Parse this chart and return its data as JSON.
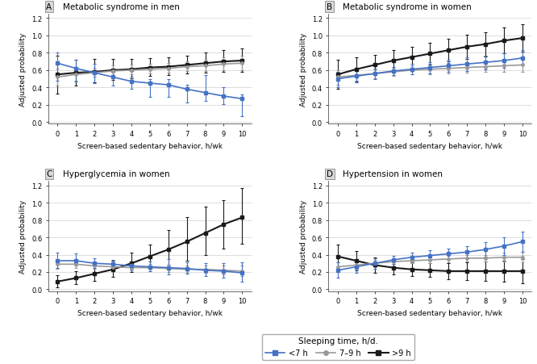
{
  "x": [
    0,
    1,
    2,
    3,
    4,
    5,
    6,
    7,
    8,
    9,
    10
  ],
  "panels": {
    "A": {
      "title": "Metabolic syndrome in men",
      "ylabel": "Adjusted probability",
      "xlabel": "Screen-based sedentary behavior, h/wk",
      "ylim": [
        -0.02,
        1.25
      ],
      "yticks": [
        0,
        0.2,
        0.4,
        0.6,
        0.8,
        1.0,
        1.2
      ],
      "series": {
        "lt7": {
          "y": [
            0.68,
            0.62,
            0.57,
            0.52,
            0.47,
            0.45,
            0.43,
            0.38,
            0.34,
            0.3,
            0.27
          ],
          "yerr_lo": [
            0.2,
            0.15,
            0.12,
            0.1,
            0.09,
            0.16,
            0.14,
            0.15,
            0.1,
            0.09,
            0.2
          ],
          "yerr_hi": [
            0.12,
            0.1,
            0.1,
            0.09,
            0.05,
            0.05,
            0.07,
            0.05,
            0.2,
            0.1,
            0.05
          ]
        },
        "7to9": {
          "y": [
            0.52,
            0.55,
            0.57,
            0.59,
            0.6,
            0.61,
            0.62,
            0.64,
            0.65,
            0.67,
            0.68
          ],
          "yerr_lo": [
            0.1,
            0.07,
            0.05,
            0.05,
            0.05,
            0.05,
            0.05,
            0.05,
            0.06,
            0.07,
            0.08
          ],
          "yerr_hi": [
            0.1,
            0.07,
            0.06,
            0.06,
            0.06,
            0.06,
            0.06,
            0.06,
            0.07,
            0.08,
            0.09
          ]
        },
        "gt9": {
          "y": [
            0.55,
            0.57,
            0.58,
            0.6,
            0.61,
            0.63,
            0.64,
            0.66,
            0.68,
            0.7,
            0.71
          ],
          "yerr_lo": [
            0.22,
            0.15,
            0.12,
            0.11,
            0.1,
            0.1,
            0.1,
            0.1,
            0.11,
            0.12,
            0.13
          ],
          "yerr_hi": [
            0.22,
            0.15,
            0.15,
            0.13,
            0.12,
            0.11,
            0.11,
            0.11,
            0.12,
            0.13,
            0.14
          ]
        }
      }
    },
    "B": {
      "title": "Metabolic syndrome in women",
      "ylabel": "Adjusted probability",
      "xlabel": "Screen-based sedentary behavior, h/wk",
      "ylim": [
        -0.02,
        1.25
      ],
      "yticks": [
        0,
        0.2,
        0.4,
        0.6,
        0.8,
        1.0,
        1.2
      ],
      "series": {
        "lt7": {
          "y": [
            0.5,
            0.53,
            0.56,
            0.59,
            0.61,
            0.63,
            0.65,
            0.67,
            0.69,
            0.71,
            0.74
          ],
          "yerr_lo": [
            0.1,
            0.07,
            0.06,
            0.05,
            0.06,
            0.07,
            0.07,
            0.08,
            0.08,
            0.08,
            0.08
          ],
          "yerr_hi": [
            0.08,
            0.06,
            0.06,
            0.05,
            0.06,
            0.06,
            0.07,
            0.08,
            0.08,
            0.08,
            0.09
          ]
        },
        "7to9": {
          "y": [
            0.52,
            0.54,
            0.56,
            0.58,
            0.6,
            0.61,
            0.62,
            0.63,
            0.64,
            0.65,
            0.66
          ],
          "yerr_lo": [
            0.09,
            0.06,
            0.05,
            0.05,
            0.05,
            0.06,
            0.06,
            0.06,
            0.06,
            0.07,
            0.08
          ],
          "yerr_hi": [
            0.08,
            0.06,
            0.05,
            0.05,
            0.05,
            0.06,
            0.06,
            0.06,
            0.06,
            0.07,
            0.08
          ]
        },
        "gt9": {
          "y": [
            0.55,
            0.61,
            0.66,
            0.71,
            0.75,
            0.79,
            0.83,
            0.87,
            0.9,
            0.94,
            0.97
          ],
          "yerr_lo": [
            0.17,
            0.14,
            0.12,
            0.12,
            0.12,
            0.13,
            0.13,
            0.14,
            0.14,
            0.15,
            0.16
          ],
          "yerr_hi": [
            0.17,
            0.14,
            0.12,
            0.12,
            0.12,
            0.13,
            0.13,
            0.14,
            0.14,
            0.15,
            0.16
          ]
        }
      }
    },
    "C": {
      "title": "Hyperglycemia in women",
      "ylabel": "Adjusted probability",
      "xlabel": "Screen-based sedentary behavior, h/wk",
      "ylim": [
        -0.02,
        1.25
      ],
      "yticks": [
        0,
        0.2,
        0.4,
        0.6,
        0.8,
        1.0,
        1.2
      ],
      "series": {
        "lt7": {
          "y": [
            0.33,
            0.33,
            0.3,
            0.29,
            0.27,
            0.26,
            0.25,
            0.24,
            0.22,
            0.21,
            0.19
          ],
          "yerr_lo": [
            0.08,
            0.06,
            0.05,
            0.04,
            0.04,
            0.05,
            0.08,
            0.06,
            0.07,
            0.08,
            0.1
          ],
          "yerr_hi": [
            0.09,
            0.08,
            0.06,
            0.05,
            0.05,
            0.06,
            0.1,
            0.07,
            0.08,
            0.09,
            0.12
          ]
        },
        "7to9": {
          "y": [
            0.29,
            0.29,
            0.27,
            0.26,
            0.25,
            0.25,
            0.24,
            0.23,
            0.23,
            0.22,
            0.21
          ],
          "yerr_lo": [
            0.05,
            0.04,
            0.03,
            0.03,
            0.03,
            0.04,
            0.04,
            0.04,
            0.04,
            0.05,
            0.06
          ],
          "yerr_hi": [
            0.05,
            0.04,
            0.03,
            0.03,
            0.03,
            0.04,
            0.04,
            0.04,
            0.04,
            0.05,
            0.06
          ]
        },
        "gt9": {
          "y": [
            0.09,
            0.13,
            0.18,
            0.23,
            0.3,
            0.38,
            0.46,
            0.55,
            0.65,
            0.75,
            0.83
          ],
          "yerr_lo": [
            0.07,
            0.07,
            0.08,
            0.09,
            0.1,
            0.12,
            0.18,
            0.22,
            0.25,
            0.28,
            0.3
          ],
          "yerr_hi": [
            0.07,
            0.08,
            0.09,
            0.1,
            0.12,
            0.14,
            0.22,
            0.28,
            0.3,
            0.28,
            0.34
          ]
        }
      }
    },
    "D": {
      "title": "Hypertension in women",
      "ylabel": "Adjusted probability",
      "xlabel": "Screen-based sedentary behavior, h/wk",
      "ylim": [
        -0.02,
        1.25
      ],
      "yticks": [
        0,
        0.2,
        0.4,
        0.6,
        0.8,
        1.0,
        1.2
      ],
      "series": {
        "lt7": {
          "y": [
            0.22,
            0.26,
            0.3,
            0.34,
            0.37,
            0.39,
            0.41,
            0.43,
            0.46,
            0.5,
            0.55
          ],
          "yerr_lo": [
            0.09,
            0.07,
            0.06,
            0.05,
            0.05,
            0.06,
            0.06,
            0.07,
            0.08,
            0.1,
            0.12
          ],
          "yerr_hi": [
            0.09,
            0.07,
            0.06,
            0.05,
            0.05,
            0.06,
            0.06,
            0.07,
            0.08,
            0.1,
            0.12
          ]
        },
        "7to9": {
          "y": [
            0.26,
            0.28,
            0.3,
            0.32,
            0.33,
            0.34,
            0.35,
            0.36,
            0.36,
            0.37,
            0.37
          ],
          "yerr_lo": [
            0.05,
            0.04,
            0.04,
            0.03,
            0.03,
            0.04,
            0.04,
            0.04,
            0.04,
            0.05,
            0.06
          ],
          "yerr_hi": [
            0.05,
            0.04,
            0.04,
            0.03,
            0.03,
            0.04,
            0.04,
            0.04,
            0.04,
            0.05,
            0.06
          ]
        },
        "gt9": {
          "y": [
            0.38,
            0.33,
            0.28,
            0.25,
            0.23,
            0.22,
            0.21,
            0.21,
            0.21,
            0.21,
            0.21
          ],
          "yerr_lo": [
            0.14,
            0.11,
            0.09,
            0.08,
            0.08,
            0.08,
            0.09,
            0.1,
            0.11,
            0.12,
            0.14
          ],
          "yerr_hi": [
            0.14,
            0.11,
            0.09,
            0.08,
            0.08,
            0.08,
            0.09,
            0.1,
            0.11,
            0.12,
            0.14
          ]
        }
      }
    }
  },
  "colors": {
    "lt7": "#4472c4",
    "7to9": "#999999",
    "gt9": "#1a1a1a"
  },
  "legend": {
    "title": "Sleeping time, h/d.",
    "labels": [
      "<7 h",
      "7–9 h",
      ">9 h"
    ]
  },
  "panel_labels": [
    "A",
    "B",
    "C",
    "D"
  ],
  "marker_lt7": "s",
  "marker_7to9": "o",
  "marker_gt9": "s"
}
